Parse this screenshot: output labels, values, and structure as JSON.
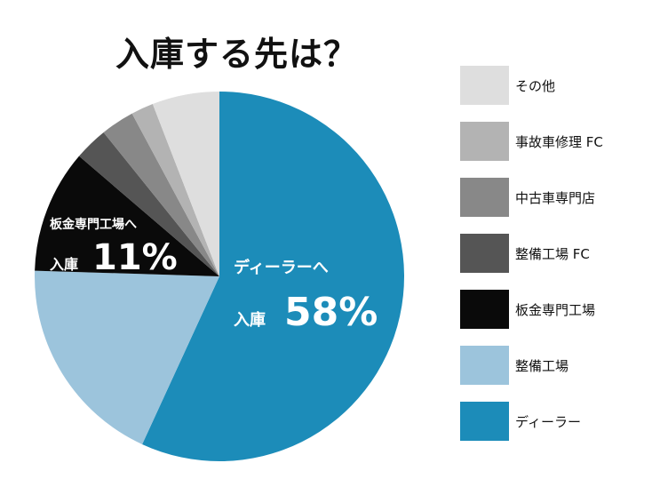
{
  "chart_data": {
    "type": "pie",
    "title": "入庫する先は？",
    "categories": [
      "ディーラー",
      "整備工場",
      "板金専門工場",
      "整備工場 FC",
      "中古車専門店",
      "事故車修理 FC",
      "その他"
    ],
    "values": [
      58,
      19,
      11,
      3,
      3,
      2,
      6
    ],
    "colors": [
      "#1c8cb9",
      "#9cc4dc",
      "#0a0a0a",
      "#555555",
      "#888888",
      "#b3b3b3",
      "#dedede"
    ],
    "legend_order": [
      6,
      5,
      4,
      3,
      2,
      1,
      0
    ],
    "legend_position": "right",
    "annotations": [
      {
        "index": 0,
        "line1": "ディーラーへ",
        "line2": "入庫",
        "value": "58%"
      },
      {
        "index": 2,
        "line1": "板金専門工場へ",
        "line2": "入庫",
        "value": "11%"
      }
    ]
  }
}
